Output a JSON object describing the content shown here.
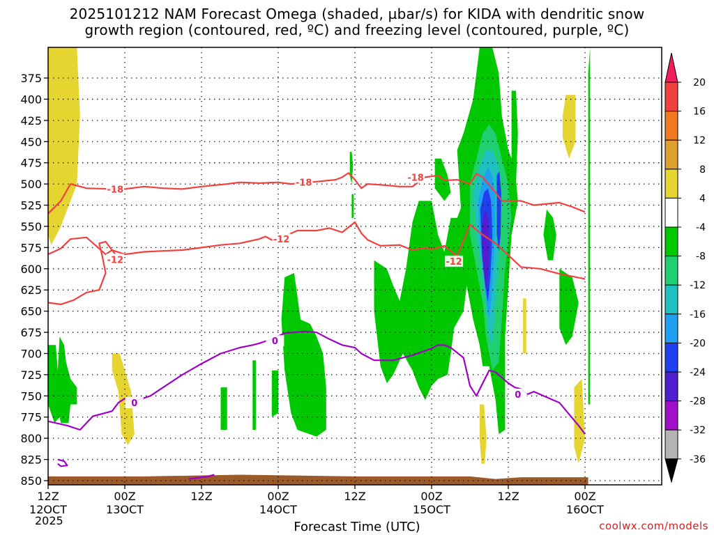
{
  "chart_data": {
    "type": "heatmap",
    "title": "2025101212 NAM Forecast Omega (shaded, µbar/s) for KIDA with dendritic snow",
    "title_line2": "growth region (contoured, red, ºC) and freezing level (contoured, purple, ºC)",
    "xlabel": "Forecast Time (UTC)",
    "ylabel": "",
    "year_label": "2025",
    "credit": "coolwx.com/models",
    "y_axis": {
      "range": [
        860,
        345
      ],
      "scale": "pressure_hPa",
      "ticks": [
        375,
        400,
        425,
        450,
        475,
        500,
        525,
        550,
        575,
        600,
        625,
        650,
        675,
        700,
        725,
        750,
        775,
        800,
        825,
        850
      ]
    },
    "x_axis": {
      "unit": "hours_since_2025101212",
      "range": [
        0,
        96
      ],
      "ticks": [
        {
          "hour": 0,
          "line1": "12Z",
          "line2": "12OCT"
        },
        {
          "hour": 12,
          "line1": "00Z",
          "line2": "13OCT"
        },
        {
          "hour": 24,
          "line1": "12Z",
          "line2": ""
        },
        {
          "hour": 36,
          "line1": "00Z",
          "line2": "14OCT"
        },
        {
          "hour": 48,
          "line1": "12Z",
          "line2": ""
        },
        {
          "hour": 60,
          "line1": "00Z",
          "line2": "15OCT"
        },
        {
          "hour": 72,
          "line1": "12Z",
          "line2": ""
        },
        {
          "hour": 84,
          "line1": "00Z",
          "line2": "16OCT"
        }
      ]
    },
    "colorbar": {
      "labels": [
        "20",
        "16",
        "12",
        "8",
        "4",
        "-4",
        "-8",
        "-12",
        "-16",
        "-20",
        "-24",
        "-28",
        "-32",
        "-36"
      ],
      "colors": [
        "#f01e5a",
        "#f04040",
        "#f07a20",
        "#e0a030",
        "#e6d530",
        "#ffffff",
        "#00c800",
        "#20d070",
        "#20c0c0",
        "#20a0f0",
        "#2040f0",
        "#5020d0",
        "#a010c8",
        "#b4b4b4",
        "#000000"
      ]
    },
    "contours": [
      {
        "label": "-18",
        "color": "#f04040",
        "variable": "temperature_C",
        "points": [
          [
            0,
            535
          ],
          [
            2,
            520
          ],
          [
            3.5,
            500
          ],
          [
            6,
            505
          ],
          [
            10,
            506
          ],
          [
            12,
            506
          ],
          [
            15,
            503
          ],
          [
            18,
            505
          ],
          [
            21,
            506
          ],
          [
            24,
            503
          ],
          [
            28,
            500
          ],
          [
            30,
            498
          ],
          [
            33,
            499
          ],
          [
            36,
            498
          ],
          [
            38,
            500
          ],
          [
            41,
            498
          ],
          [
            45,
            495
          ],
          [
            46,
            492
          ],
          [
            47,
            487
          ],
          [
            48,
            495
          ],
          [
            49,
            505
          ],
          [
            50,
            500
          ],
          [
            52,
            501
          ],
          [
            55,
            503
          ],
          [
            57,
            503
          ],
          [
            59,
            492
          ],
          [
            61,
            490
          ],
          [
            62,
            496
          ],
          [
            64,
            495
          ],
          [
            66,
            500
          ],
          [
            67,
            488
          ],
          [
            68,
            492
          ],
          [
            70,
            510
          ],
          [
            71,
            520
          ],
          [
            74,
            520
          ],
          [
            76,
            525
          ],
          [
            80,
            522
          ],
          [
            82,
            527
          ],
          [
            84,
            533
          ]
        ]
      },
      {
        "label": "-12",
        "color": "#f04040",
        "variable": "temperature_C",
        "points": [
          [
            0,
            583
          ],
          [
            2,
            576
          ],
          [
            3.5,
            565
          ],
          [
            6,
            563
          ],
          [
            9,
            583
          ],
          [
            10,
            578
          ],
          [
            12,
            583
          ],
          [
            15,
            580
          ],
          [
            18,
            579
          ],
          [
            21,
            578
          ],
          [
            24,
            575
          ],
          [
            27,
            572
          ],
          [
            30,
            570
          ],
          [
            33,
            565
          ],
          [
            34,
            562
          ],
          [
            35,
            566
          ],
          [
            36,
            565
          ],
          [
            39,
            555
          ],
          [
            42,
            555
          ],
          [
            44,
            552
          ],
          [
            46,
            557
          ],
          [
            48,
            545
          ],
          [
            49,
            558
          ],
          [
            50,
            566
          ],
          [
            52,
            573
          ],
          [
            55,
            572
          ],
          [
            57,
            578
          ],
          [
            59,
            575
          ],
          [
            60,
            577
          ],
          [
            62,
            573
          ],
          [
            64,
            585
          ],
          [
            66,
            548
          ],
          [
            68,
            560
          ],
          [
            70,
            570
          ],
          [
            72,
            584
          ],
          [
            74,
            598
          ],
          [
            77,
            600
          ],
          [
            80,
            606
          ],
          [
            84,
            612
          ]
        ]
      },
      {
        "label": "-12",
        "color": "#f04040",
        "variable": "temperature_C",
        "points": [
          [
            0,
            640
          ],
          [
            2,
            642
          ],
          [
            4,
            637
          ],
          [
            6,
            628
          ],
          [
            8,
            625
          ],
          [
            9,
            605
          ],
          [
            8.5,
            586
          ],
          [
            8,
            570
          ],
          [
            9,
            568
          ],
          [
            10.5,
            583
          ]
        ]
      },
      {
        "label": "0",
        "color": "#a000c8",
        "variable": "temperature_C",
        "points": [
          [
            0,
            780
          ],
          [
            3,
            785
          ],
          [
            5,
            790
          ],
          [
            7,
            774
          ],
          [
            9,
            770
          ],
          [
            10,
            768
          ],
          [
            11,
            758
          ],
          [
            12,
            753
          ],
          [
            14,
            755
          ],
          [
            16,
            750
          ],
          [
            18,
            740
          ],
          [
            21,
            725
          ],
          [
            24,
            712
          ],
          [
            27,
            700
          ],
          [
            30,
            693
          ],
          [
            32,
            690
          ],
          [
            33,
            688
          ],
          [
            35,
            683
          ],
          [
            37,
            676
          ],
          [
            40,
            674
          ],
          [
            42,
            675
          ],
          [
            44,
            683
          ],
          [
            46,
            690
          ],
          [
            48,
            693
          ],
          [
            49,
            700
          ],
          [
            51,
            708
          ],
          [
            54,
            708
          ],
          [
            57,
            702
          ],
          [
            60,
            694
          ],
          [
            61,
            690
          ],
          [
            62,
            690
          ],
          [
            63,
            693
          ],
          [
            65,
            705
          ],
          [
            66,
            738
          ],
          [
            67,
            750
          ],
          [
            68,
            735
          ],
          [
            69,
            720
          ],
          [
            70,
            722
          ],
          [
            72,
            735
          ],
          [
            73,
            740
          ],
          [
            74,
            742
          ],
          [
            75,
            748
          ],
          [
            76,
            745
          ],
          [
            80,
            758
          ],
          [
            83,
            785
          ],
          [
            84,
            795
          ]
        ]
      },
      {
        "label": "",
        "color": "#a000c8",
        "variable": "temperature_C",
        "points": [
          [
            1.5,
            825
          ],
          [
            2.5,
            827
          ],
          [
            3,
            832
          ],
          [
            2,
            833
          ],
          [
            1.5,
            830
          ]
        ]
      },
      {
        "label": "",
        "color": "#a000c8",
        "variable": "temperature_C",
        "points": [
          [
            22,
            848
          ],
          [
            25,
            845
          ],
          [
            26,
            843
          ]
        ]
      }
    ],
    "omega_regions": [
      {
        "value_range": "4 to 8",
        "color": "#e6d530",
        "location": "hour 0-4.5, 345-570 hPa"
      },
      {
        "value_range": "-4 to -8",
        "color": "#00c800",
        "location": "hour 0-5, 678-782 hPa"
      },
      {
        "value_range": "-4 to -8",
        "color": "#00c800",
        "location": "hour 36-44, 605-800 hPa"
      },
      {
        "value_range": "-4 to -8",
        "color": "#00c800",
        "location": "hour 52-72, 520-760 hPa"
      },
      {
        "value_range": "-12 to -32",
        "color": "#a010c8",
        "location": "hour 66-74, 500-625 hPa"
      },
      {
        "value_range": "4 to 8",
        "color": "#e6d530",
        "location": "hour 81-84, 395-500 hPa"
      }
    ],
    "ground_color": "#9b5a2a"
  }
}
